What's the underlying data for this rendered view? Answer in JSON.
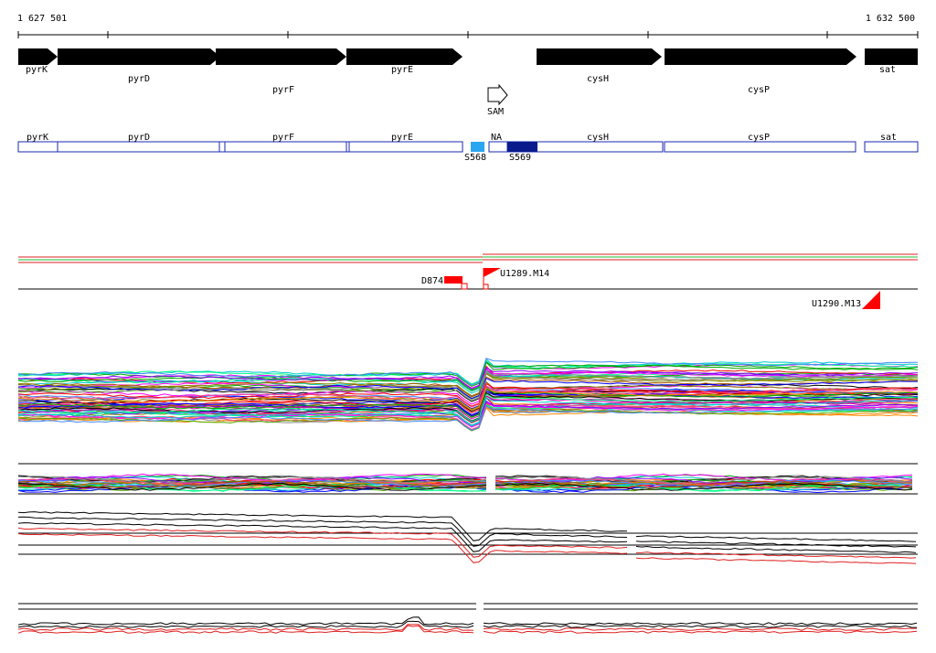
{
  "coordinates": {
    "start": "1 627 501",
    "end": "1 632 500"
  },
  "genes": [
    {
      "label": "pyrK",
      "label_row": "low"
    },
    {
      "label": "pyrD",
      "label_row": "mid"
    },
    {
      "label": "pyrF",
      "label_row": "high"
    },
    {
      "label": "pyrE",
      "label_row": "low"
    },
    {
      "label": "cysH",
      "label_row": "low"
    },
    {
      "label": "cysP",
      "label_row": "high"
    },
    {
      "label": "sat",
      "label_row": "low"
    }
  ],
  "riboswitch": {
    "label": "SAM"
  },
  "segments": [
    {
      "label": "pyrK"
    },
    {
      "label": "pyrD"
    },
    {
      "label": "pyrF"
    },
    {
      "label": "pyrE"
    },
    {
      "label": "NA"
    },
    {
      "label": "cysH"
    },
    {
      "label": "cysP"
    },
    {
      "label": "sat"
    }
  ],
  "segment_features": [
    {
      "label": "S568",
      "color": "#2aa6f0"
    },
    {
      "label": "S569",
      "color": "#0a1a8c"
    }
  ],
  "markers": [
    {
      "label": "D874",
      "color": "#ff0000"
    },
    {
      "label": "U1289.M14",
      "color": "#ff0000"
    },
    {
      "label": "U1290.M13",
      "color": "#ff0000"
    }
  ],
  "colors": {
    "gene_arrow": "#000000",
    "segment_outline": "#1a2ab0",
    "track_red": "#e02020",
    "track_green": "#22bb33",
    "trace_palette": [
      "#ff0000",
      "#00aa00",
      "#0000ff",
      "#ff00ff",
      "#00cccc",
      "#ff8800",
      "#888800",
      "#8800ff",
      "#00ff88",
      "#ff4488",
      "#4488ff",
      "#888888",
      "#000000",
      "#aa5500",
      "#55aa00",
      "#cc00aa"
    ]
  }
}
